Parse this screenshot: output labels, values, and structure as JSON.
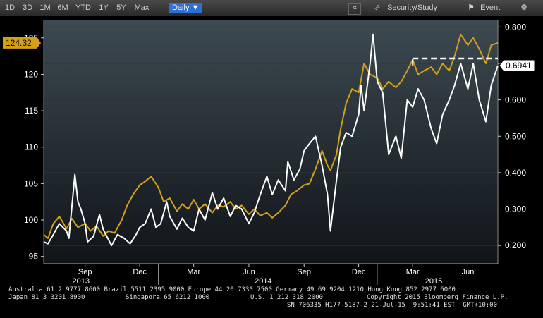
{
  "toolbar": {
    "periods": [
      "1D",
      "3D",
      "1M",
      "6M",
      "YTD",
      "1Y",
      "5Y",
      "Max"
    ],
    "frequency": "Daily",
    "security_study": "Security/Study",
    "event": "Event"
  },
  "footer": {
    "line1": "Australia 61 2 9777 8600 Brazil 5511 2395 9000 Europe 44 20 7330 7500 Germany 49 69 9204 1210 Hong Kong 852 2977 6000",
    "line2a": "Japan 81 3 3201 8900",
    "line2b": "Singapore 65 6212 1000",
    "line2c": "U.S. 1 212 318 2000",
    "line2d": "Copyright 2015 Bloomberg Finance L.P.",
    "line3": "SN 706335 H177-5187-2 21-Jul-15  9:51:41 EST  GMT+10:00"
  },
  "colors": {
    "yellow": "#d4a017",
    "white": "#ffffff",
    "background": "#1a1f24"
  },
  "chart_data": {
    "type": "line",
    "x_range": [
      "2013-06-24",
      "2015-07-21"
    ],
    "left_axis": {
      "ticks": [
        95,
        100,
        105,
        110,
        115,
        120,
        125
      ],
      "range": [
        94,
        127.5
      ]
    },
    "right_axis": {
      "ticks": [
        "0.200",
        "0.300",
        "0.400",
        "0.500",
        "0.600",
        "0.700",
        "0.800"
      ],
      "range": [
        0.15,
        0.82
      ]
    },
    "x_ticks": [
      "Sep",
      "Dec",
      "Mar",
      "Jun",
      "Sep",
      "Dec",
      "Mar",
      "Jun"
    ],
    "x_tick_dates": [
      "2013-09-01",
      "2013-12-01",
      "2014-03-01",
      "2014-06-01",
      "2014-09-01",
      "2014-12-01",
      "2015-03-01",
      "2015-06-01"
    ],
    "years": [
      {
        "label": "2013",
        "date": "2013-08-25"
      },
      {
        "label": "2014",
        "date": "2014-06-25"
      },
      {
        "label": "2015",
        "date": "2015-04-05"
      }
    ],
    "year_separators": [
      "2014-01-01",
      "2015-01-01"
    ],
    "last_left_label": "124.32",
    "last_right_label": "0.6941",
    "reference_level": 0.7136,
    "series": [
      {
        "axis": "left",
        "color": "#d4a017",
        "points": [
          [
            "2013-06-24",
            98.0
          ],
          [
            "2013-07-01",
            97.5
          ],
          [
            "2013-07-10",
            99.5
          ],
          [
            "2013-07-20",
            100.5
          ],
          [
            "2013-08-01",
            98.8
          ],
          [
            "2013-08-10",
            100.2
          ],
          [
            "2013-08-20",
            99.0
          ],
          [
            "2013-09-01",
            99.5
          ],
          [
            "2013-09-10",
            98.5
          ],
          [
            "2013-09-20",
            99.2
          ],
          [
            "2013-10-01",
            97.8
          ],
          [
            "2013-10-10",
            98.5
          ],
          [
            "2013-10-20",
            98.2
          ],
          [
            "2013-11-01",
            100.0
          ],
          [
            "2013-11-10",
            102.0
          ],
          [
            "2013-11-20",
            103.5
          ],
          [
            "2013-12-01",
            104.8
          ],
          [
            "2013-12-10",
            105.3
          ],
          [
            "2013-12-20",
            106.0
          ],
          [
            "2014-01-01",
            104.5
          ],
          [
            "2014-01-10",
            102.5
          ],
          [
            "2014-01-20",
            103.0
          ],
          [
            "2014-02-01",
            101.2
          ],
          [
            "2014-02-10",
            102.2
          ],
          [
            "2014-02-20",
            101.5
          ],
          [
            "2014-03-01",
            102.8
          ],
          [
            "2014-03-10",
            101.5
          ],
          [
            "2014-03-20",
            102.2
          ],
          [
            "2014-04-01",
            101.0
          ],
          [
            "2014-04-10",
            102.0
          ],
          [
            "2014-04-20",
            101.8
          ],
          [
            "2014-05-01",
            102.5
          ],
          [
            "2014-05-10",
            101.5
          ],
          [
            "2014-05-20",
            102.0
          ],
          [
            "2014-06-01",
            100.8
          ],
          [
            "2014-06-10",
            101.5
          ],
          [
            "2014-06-20",
            100.6
          ],
          [
            "2014-07-01",
            101.0
          ],
          [
            "2014-07-10",
            100.3
          ],
          [
            "2014-07-20",
            101.0
          ],
          [
            "2014-08-01",
            102.0
          ],
          [
            "2014-08-10",
            103.5
          ],
          [
            "2014-08-20",
            104.0
          ],
          [
            "2014-09-01",
            104.8
          ],
          [
            "2014-09-10",
            105.0
          ],
          [
            "2014-09-20",
            107.0
          ],
          [
            "2014-10-01",
            109.5
          ],
          [
            "2014-10-10",
            107.5
          ],
          [
            "2014-10-15",
            106.8
          ],
          [
            "2014-10-25",
            109.0
          ],
          [
            "2014-11-01",
            112.5
          ],
          [
            "2014-11-10",
            116.0
          ],
          [
            "2014-11-20",
            118.0
          ],
          [
            "2014-12-01",
            117.5
          ],
          [
            "2014-12-10",
            121.5
          ],
          [
            "2014-12-20",
            120.0
          ],
          [
            "2015-01-01",
            119.5
          ],
          [
            "2015-01-10",
            118.0
          ],
          [
            "2015-01-20",
            119.0
          ],
          [
            "2015-02-01",
            118.2
          ],
          [
            "2015-02-10",
            119.0
          ],
          [
            "2015-02-20",
            120.5
          ],
          [
            "2015-03-01",
            122.0
          ],
          [
            "2015-03-10",
            120.0
          ],
          [
            "2015-03-20",
            120.5
          ],
          [
            "2015-04-01",
            121.0
          ],
          [
            "2015-04-10",
            120.0
          ],
          [
            "2015-04-20",
            121.5
          ],
          [
            "2015-05-01",
            120.5
          ],
          [
            "2015-05-10",
            122.5
          ],
          [
            "2015-05-20",
            125.5
          ],
          [
            "2015-06-01",
            124.0
          ],
          [
            "2015-06-10",
            125.0
          ],
          [
            "2015-06-20",
            123.5
          ],
          [
            "2015-07-01",
            121.5
          ],
          [
            "2015-07-10",
            124.0
          ],
          [
            "2015-07-21",
            124.32
          ]
        ]
      },
      {
        "axis": "right",
        "color": "#ffffff",
        "points": [
          [
            "2013-06-24",
            0.21
          ],
          [
            "2013-07-01",
            0.205
          ],
          [
            "2013-07-10",
            0.23
          ],
          [
            "2013-07-20",
            0.26
          ],
          [
            "2013-08-01",
            0.24
          ],
          [
            "2013-08-05",
            0.22
          ],
          [
            "2013-08-15",
            0.395
          ],
          [
            "2013-08-20",
            0.32
          ],
          [
            "2013-08-25",
            0.3
          ],
          [
            "2013-09-01",
            0.26
          ],
          [
            "2013-09-05",
            0.21
          ],
          [
            "2013-09-15",
            0.225
          ],
          [
            "2013-09-25",
            0.285
          ],
          [
            "2013-10-01",
            0.245
          ],
          [
            "2013-10-15",
            0.2
          ],
          [
            "2013-10-25",
            0.23
          ],
          [
            "2013-11-05",
            0.22
          ],
          [
            "2013-11-15",
            0.205
          ],
          [
            "2013-11-25",
            0.23
          ],
          [
            "2013-12-01",
            0.25
          ],
          [
            "2013-12-10",
            0.26
          ],
          [
            "2013-12-20",
            0.3
          ],
          [
            "2013-12-28",
            0.25
          ],
          [
            "2014-01-05",
            0.26
          ],
          [
            "2014-01-15",
            0.32
          ],
          [
            "2014-01-20",
            0.28
          ],
          [
            "2014-02-01",
            0.245
          ],
          [
            "2014-02-10",
            0.275
          ],
          [
            "2014-02-20",
            0.25
          ],
          [
            "2014-03-01",
            0.24
          ],
          [
            "2014-03-10",
            0.3
          ],
          [
            "2014-03-20",
            0.27
          ],
          [
            "2014-04-01",
            0.345
          ],
          [
            "2014-04-10",
            0.3
          ],
          [
            "2014-04-20",
            0.33
          ],
          [
            "2014-05-01",
            0.28
          ],
          [
            "2014-05-10",
            0.31
          ],
          [
            "2014-05-20",
            0.3
          ],
          [
            "2014-06-01",
            0.26
          ],
          [
            "2014-06-10",
            0.29
          ],
          [
            "2014-06-20",
            0.34
          ],
          [
            "2014-07-01",
            0.39
          ],
          [
            "2014-07-10",
            0.34
          ],
          [
            "2014-07-20",
            0.38
          ],
          [
            "2014-08-01",
            0.35
          ],
          [
            "2014-08-05",
            0.43
          ],
          [
            "2014-08-15",
            0.38
          ],
          [
            "2014-08-25",
            0.41
          ],
          [
            "2014-09-01",
            0.46
          ],
          [
            "2014-09-10",
            0.48
          ],
          [
            "2014-09-20",
            0.5
          ],
          [
            "2014-10-01",
            0.42
          ],
          [
            "2014-10-10",
            0.34
          ],
          [
            "2014-10-15",
            0.24
          ],
          [
            "2014-10-25",
            0.38
          ],
          [
            "2014-11-01",
            0.47
          ],
          [
            "2014-11-10",
            0.51
          ],
          [
            "2014-11-20",
            0.5
          ],
          [
            "2014-12-01",
            0.56
          ],
          [
            "2014-12-05",
            0.64
          ],
          [
            "2014-12-10",
            0.57
          ],
          [
            "2014-12-20",
            0.7
          ],
          [
            "2014-12-25",
            0.78
          ],
          [
            "2015-01-01",
            0.65
          ],
          [
            "2015-01-10",
            0.62
          ],
          [
            "2015-01-20",
            0.45
          ],
          [
            "2015-02-01",
            0.5
          ],
          [
            "2015-02-10",
            0.44
          ],
          [
            "2015-02-20",
            0.6
          ],
          [
            "2015-03-01",
            0.58
          ],
          [
            "2015-03-10",
            0.63
          ],
          [
            "2015-03-20",
            0.6
          ],
          [
            "2015-04-01",
            0.52
          ],
          [
            "2015-04-10",
            0.48
          ],
          [
            "2015-04-20",
            0.56
          ],
          [
            "2015-05-01",
            0.6
          ],
          [
            "2015-05-10",
            0.64
          ],
          [
            "2015-05-20",
            0.7
          ],
          [
            "2015-06-01",
            0.63
          ],
          [
            "2015-06-10",
            0.7
          ],
          [
            "2015-06-20",
            0.6
          ],
          [
            "2015-07-01",
            0.54
          ],
          [
            "2015-07-10",
            0.64
          ],
          [
            "2015-07-21",
            0.6941
          ]
        ]
      }
    ]
  }
}
